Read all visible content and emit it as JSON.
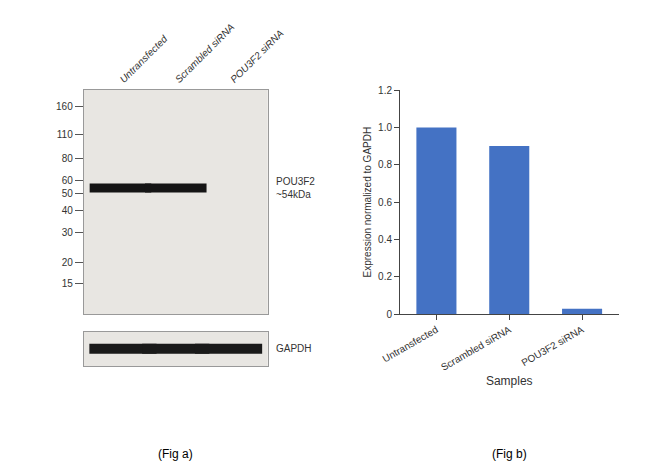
{
  "chart_data": [
    {
      "type": "blot",
      "categories": [
        "Untransfected",
        "Scrambled siRNA",
        "POU3F2 siRNA"
      ],
      "log": "y",
      "ylim": [
        10,
        200
      ],
      "yticks": [
        160,
        110,
        80,
        60,
        50,
        40,
        30,
        20,
        15
      ],
      "grid": false,
      "series": [
        {
          "name": "POU3F2\n~54kDa",
          "color": "#151515",
          "values": [
            54,
            54,
            null
          ]
        }
      ],
      "annotations": [
        {
          "text": "(Fig a)"
        }
      ]
    },
    {
      "type": "blot",
      "categories": [
        "Untransfected",
        "Scrambled siRNA",
        "POU3F2 siRNA"
      ],
      "tick_labels": false,
      "grid": false,
      "series": [
        {
          "name": "GAPDH",
          "color": "#1a1a1a",
          "values": [
            true,
            true,
            true
          ]
        }
      ]
    },
    {
      "type": "bar",
      "categories": [
        "Untransfected",
        "Scrambled siRNA",
        "POU3F2 siRNA"
      ],
      "values": [
        1.0,
        0.9,
        0.03
      ],
      "color": "#4472C4",
      "xlabel": "Samples",
      "ylabel": "Expression normalized to GAPDH",
      "ylim": [
        0,
        1.2
      ],
      "yticks": [
        0,
        0.2,
        0.4,
        0.6,
        0.8,
        {
          "value": 1.0,
          "label": "1.0"
        },
        1.2
      ],
      "grid": false,
      "annotations": [
        {
          "text": "(Fig b)"
        }
      ]
    }
  ]
}
